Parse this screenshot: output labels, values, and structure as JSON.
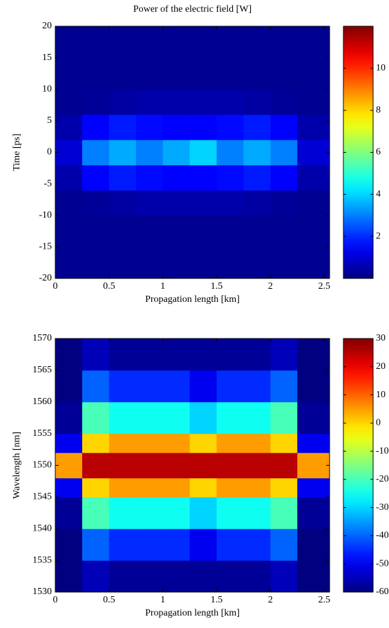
{
  "chart_data": [
    {
      "type": "heatmap",
      "title": "Power of the electric field [W]",
      "x_label": "Propagation length [km]",
      "y_label": "Time [ps]",
      "xlim": [
        0,
        2.55
      ],
      "xticks": [
        0,
        0.5,
        1,
        1.5,
        2,
        2.5
      ],
      "ylim": [
        -20,
        20
      ],
      "yticks": [
        -20,
        -15,
        -10,
        -5,
        0,
        5,
        10,
        15,
        20
      ],
      "xbins": [
        0,
        0.25,
        0.5,
        0.75,
        1,
        1.25,
        1.5,
        1.75,
        2,
        2.25,
        2.55
      ],
      "ybins": [
        -20,
        -10,
        -6,
        -2,
        2,
        6,
        10,
        20
      ],
      "z": [
        [
          0.2,
          0.2,
          0.2,
          0.2,
          0.2,
          0.2,
          0.2,
          0.2,
          0.2,
          0.2
        ],
        [
          0.2,
          0.3,
          0.4,
          0.5,
          0.5,
          0.5,
          0.5,
          0.4,
          0.3,
          0.2
        ],
        [
          0.5,
          1.5,
          1.8,
          1.6,
          1.5,
          1.5,
          1.6,
          1.8,
          1.5,
          0.5
        ],
        [
          1,
          3,
          3.5,
          3,
          3.5,
          4,
          3,
          3.5,
          3,
          1
        ],
        [
          0.5,
          1.5,
          1.8,
          1.6,
          1.5,
          1.5,
          1.6,
          1.8,
          1.5,
          0.5
        ],
        [
          0.2,
          0.3,
          0.4,
          0.5,
          0.5,
          0.5,
          0.5,
          0.4,
          0.3,
          0.2
        ],
        [
          0.2,
          0.2,
          0.2,
          0.2,
          0.2,
          0.2,
          0.2,
          0.2,
          0.2,
          0.2
        ]
      ],
      "colormap": "jet",
      "clim": [
        0,
        12
      ],
      "cticks": [
        2,
        4,
        6,
        8,
        10
      ]
    },
    {
      "type": "heatmap",
      "x_label": "Propagation length [km]",
      "y_label": "Wavelength [nm]",
      "xlim": [
        0,
        2.55
      ],
      "xticks": [
        0,
        0.5,
        1,
        1.5,
        2,
        2.5
      ],
      "ylim": [
        1530,
        1570
      ],
      "yticks": [
        1530,
        1535,
        1540,
        1545,
        1550,
        1555,
        1560,
        1565,
        1570
      ],
      "xbins": [
        0,
        0.25,
        0.5,
        0.75,
        1,
        1.25,
        1.5,
        1.75,
        2,
        2.25,
        2.55
      ],
      "ybins": [
        1530,
        1535,
        1540,
        1545,
        1548,
        1552,
        1555,
        1560,
        1565,
        1570
      ],
      "z": [
        [
          -60,
          -55,
          -58,
          -58,
          -58,
          -58,
          -58,
          -58,
          -55,
          -60
        ],
        [
          -60,
          -40,
          -45,
          -45,
          -45,
          -50,
          -45,
          -45,
          -40,
          -60
        ],
        [
          -58,
          -20,
          -25,
          -25,
          -25,
          -30,
          -25,
          -25,
          -20,
          -58
        ],
        [
          -50,
          0,
          5,
          5,
          5,
          0,
          5,
          5,
          0,
          -50
        ],
        [
          5,
          25,
          25,
          25,
          25,
          25,
          25,
          25,
          25,
          5
        ],
        [
          -50,
          0,
          5,
          5,
          5,
          0,
          5,
          5,
          0,
          -50
        ],
        [
          -58,
          -20,
          -25,
          -25,
          -25,
          -30,
          -25,
          -25,
          -20,
          -58
        ],
        [
          -60,
          -40,
          -45,
          -45,
          -45,
          -50,
          -45,
          -45,
          -40,
          -60
        ],
        [
          -60,
          -55,
          -58,
          -58,
          -58,
          -58,
          -58,
          -58,
          -55,
          -60
        ]
      ],
      "colormap": "jet",
      "clim": [
        -60,
        30
      ],
      "cticks": [
        -60,
        -50,
        -40,
        -30,
        -20,
        -10,
        0,
        10,
        20,
        30
      ]
    }
  ]
}
